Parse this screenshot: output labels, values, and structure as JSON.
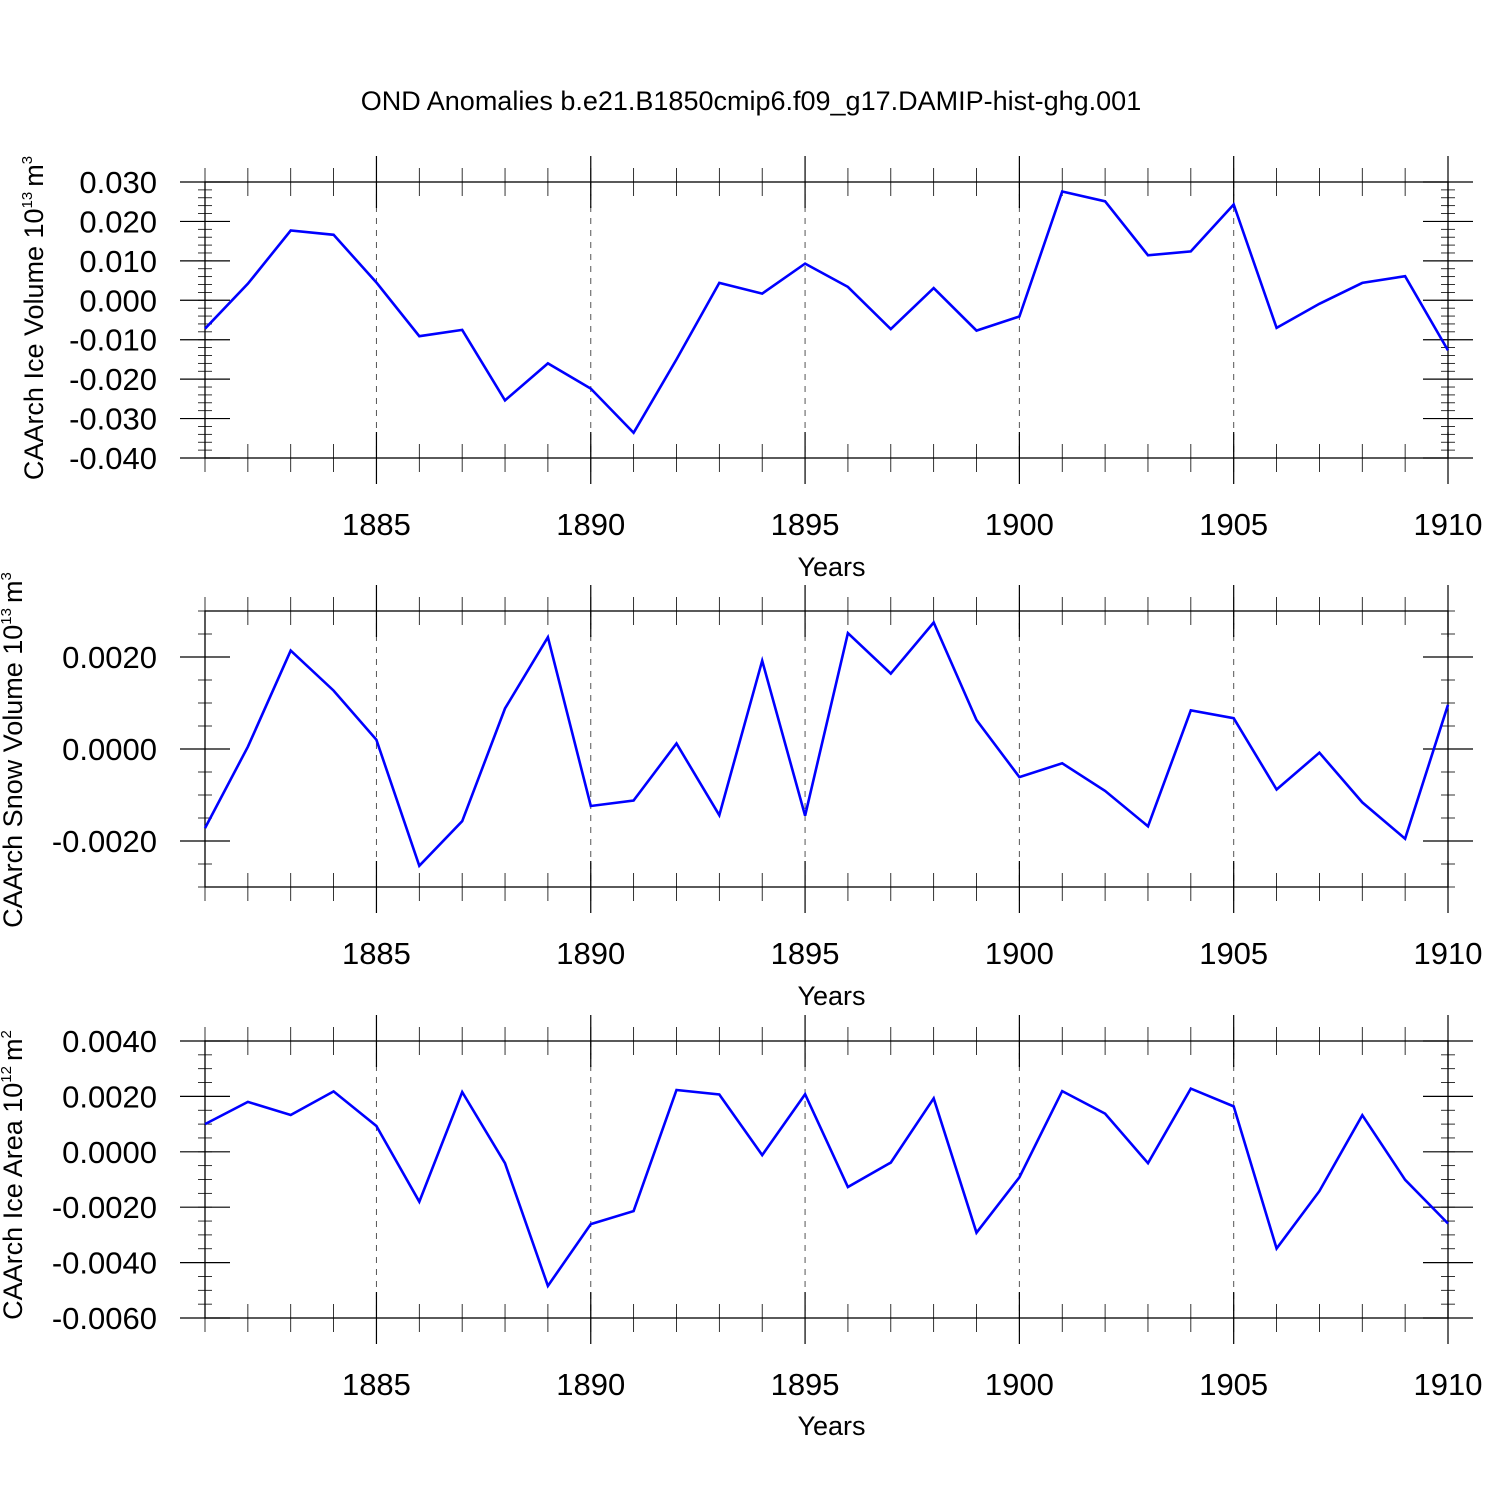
{
  "title": "OND Anomalies b.e21.B1850cmip6.f09_g17.DAMIP-hist-ghg.001",
  "series_color": "#0000ff",
  "chart_data": [
    {
      "type": "line",
      "ylabel_main": "CAArch Ice Volume 10",
      "ylabel_exp": "13",
      "ylabel_unit": "m",
      "ylabel_unit_exp": "3",
      "xlabel": "Years",
      "xlim": [
        1881,
        1910
      ],
      "ylim": [
        -0.04,
        0.03
      ],
      "yticks": [
        -0.04,
        -0.03,
        -0.02,
        -0.01,
        0.0,
        0.01,
        0.02,
        0.03
      ],
      "ytick_labels": [
        "-0.040",
        "-0.030",
        "-0.020",
        "-0.010",
        "0.000",
        "0.010",
        "0.020",
        "0.030"
      ],
      "yminor_step": 0.002,
      "xticks": [
        1885,
        1890,
        1895,
        1900,
        1905,
        1910
      ],
      "xtick_labels": [
        "1885",
        "1890",
        "1895",
        "1900",
        "1905",
        "1910"
      ],
      "x": [
        1881,
        1882,
        1883,
        1884,
        1885,
        1886,
        1887,
        1888,
        1889,
        1890,
        1891,
        1892,
        1893,
        1894,
        1895,
        1896,
        1897,
        1898,
        1899,
        1900,
        1901,
        1902,
        1903,
        1904,
        1905,
        1906,
        1907,
        1908,
        1909,
        1910
      ],
      "values": [
        -0.0072,
        0.0042,
        0.0177,
        0.0166,
        0.0045,
        -0.0091,
        -0.0075,
        -0.0254,
        -0.016,
        -0.0224,
        -0.0336,
        -0.015,
        0.0044,
        0.0017,
        0.0093,
        0.0034,
        -0.0073,
        0.0031,
        -0.0077,
        -0.0041,
        0.0276,
        0.0251,
        0.0114,
        0.0124,
        0.0243,
        -0.007,
        -0.0009,
        0.0044,
        0.0061,
        -0.0127
      ]
    },
    {
      "type": "line",
      "ylabel_main": "CAArch Snow Volume 10",
      "ylabel_exp": "13",
      "ylabel_unit": "m",
      "ylabel_unit_exp": "3",
      "xlabel": "Years",
      "xlim": [
        1881,
        1910
      ],
      "ylim": [
        -0.003,
        0.003
      ],
      "yticks": [
        -0.002,
        0.0,
        0.002
      ],
      "ytick_labels": [
        "-0.0020",
        "0.0000",
        "0.0020"
      ],
      "yminor_step": 0.0005,
      "xticks": [
        1885,
        1890,
        1895,
        1900,
        1905,
        1910
      ],
      "xtick_labels": [
        "1885",
        "1890",
        "1895",
        "1900",
        "1905",
        "1910"
      ],
      "x": [
        1881,
        1882,
        1883,
        1884,
        1885,
        1886,
        1887,
        1888,
        1889,
        1890,
        1891,
        1892,
        1893,
        1894,
        1895,
        1896,
        1897,
        1898,
        1899,
        1900,
        1901,
        1902,
        1903,
        1904,
        1905,
        1906,
        1907,
        1908,
        1909,
        1910
      ],
      "values": [
        -0.00172,
        5e-05,
        0.00214,
        0.00127,
        0.0002,
        -0.00254,
        -0.00157,
        0.00088,
        0.00243,
        -0.00124,
        -0.00112,
        0.00012,
        -0.00144,
        0.00192,
        -0.00145,
        0.00252,
        0.00164,
        0.00275,
        0.00063,
        -0.00061,
        -0.00031,
        -0.00091,
        -0.00168,
        0.00084,
        0.00067,
        -0.00088,
        -8e-05,
        -0.00116,
        -0.00195,
        0.00096
      ]
    },
    {
      "type": "line",
      "ylabel_main": "CAArch Ice Area 10",
      "ylabel_exp": "12",
      "ylabel_unit": "m",
      "ylabel_unit_exp": "2",
      "xlabel": "Years",
      "xlim": [
        1881,
        1910
      ],
      "ylim": [
        -0.006,
        0.004
      ],
      "yticks": [
        -0.006,
        -0.004,
        -0.002,
        0.0,
        0.002,
        0.004
      ],
      "ytick_labels": [
        "-0.0060",
        "-0.0040",
        "-0.0020",
        "0.0000",
        "0.0020",
        "0.0040"
      ],
      "yminor_step": 0.0005,
      "xticks": [
        1885,
        1890,
        1895,
        1900,
        1905,
        1910
      ],
      "xtick_labels": [
        "1885",
        "1890",
        "1895",
        "1900",
        "1905",
        "1910"
      ],
      "x": [
        1881,
        1882,
        1883,
        1884,
        1885,
        1886,
        1887,
        1888,
        1889,
        1890,
        1891,
        1892,
        1893,
        1894,
        1895,
        1896,
        1897,
        1898,
        1899,
        1900,
        1901,
        1902,
        1903,
        1904,
        1905,
        1906,
        1907,
        1908,
        1909,
        1910
      ],
      "values": [
        0.001,
        0.0018,
        0.00133,
        0.00218,
        0.00093,
        -0.0018,
        0.00216,
        -0.00041,
        -0.00484,
        -0.00261,
        -0.00214,
        0.00223,
        0.00207,
        -0.00012,
        0.00208,
        -0.00127,
        -0.00039,
        0.00193,
        -0.00292,
        -0.00092,
        0.00219,
        0.00138,
        -0.00041,
        0.00228,
        0.00164,
        -0.00349,
        -0.00142,
        0.00132,
        -0.00101,
        -0.00259
      ]
    }
  ]
}
